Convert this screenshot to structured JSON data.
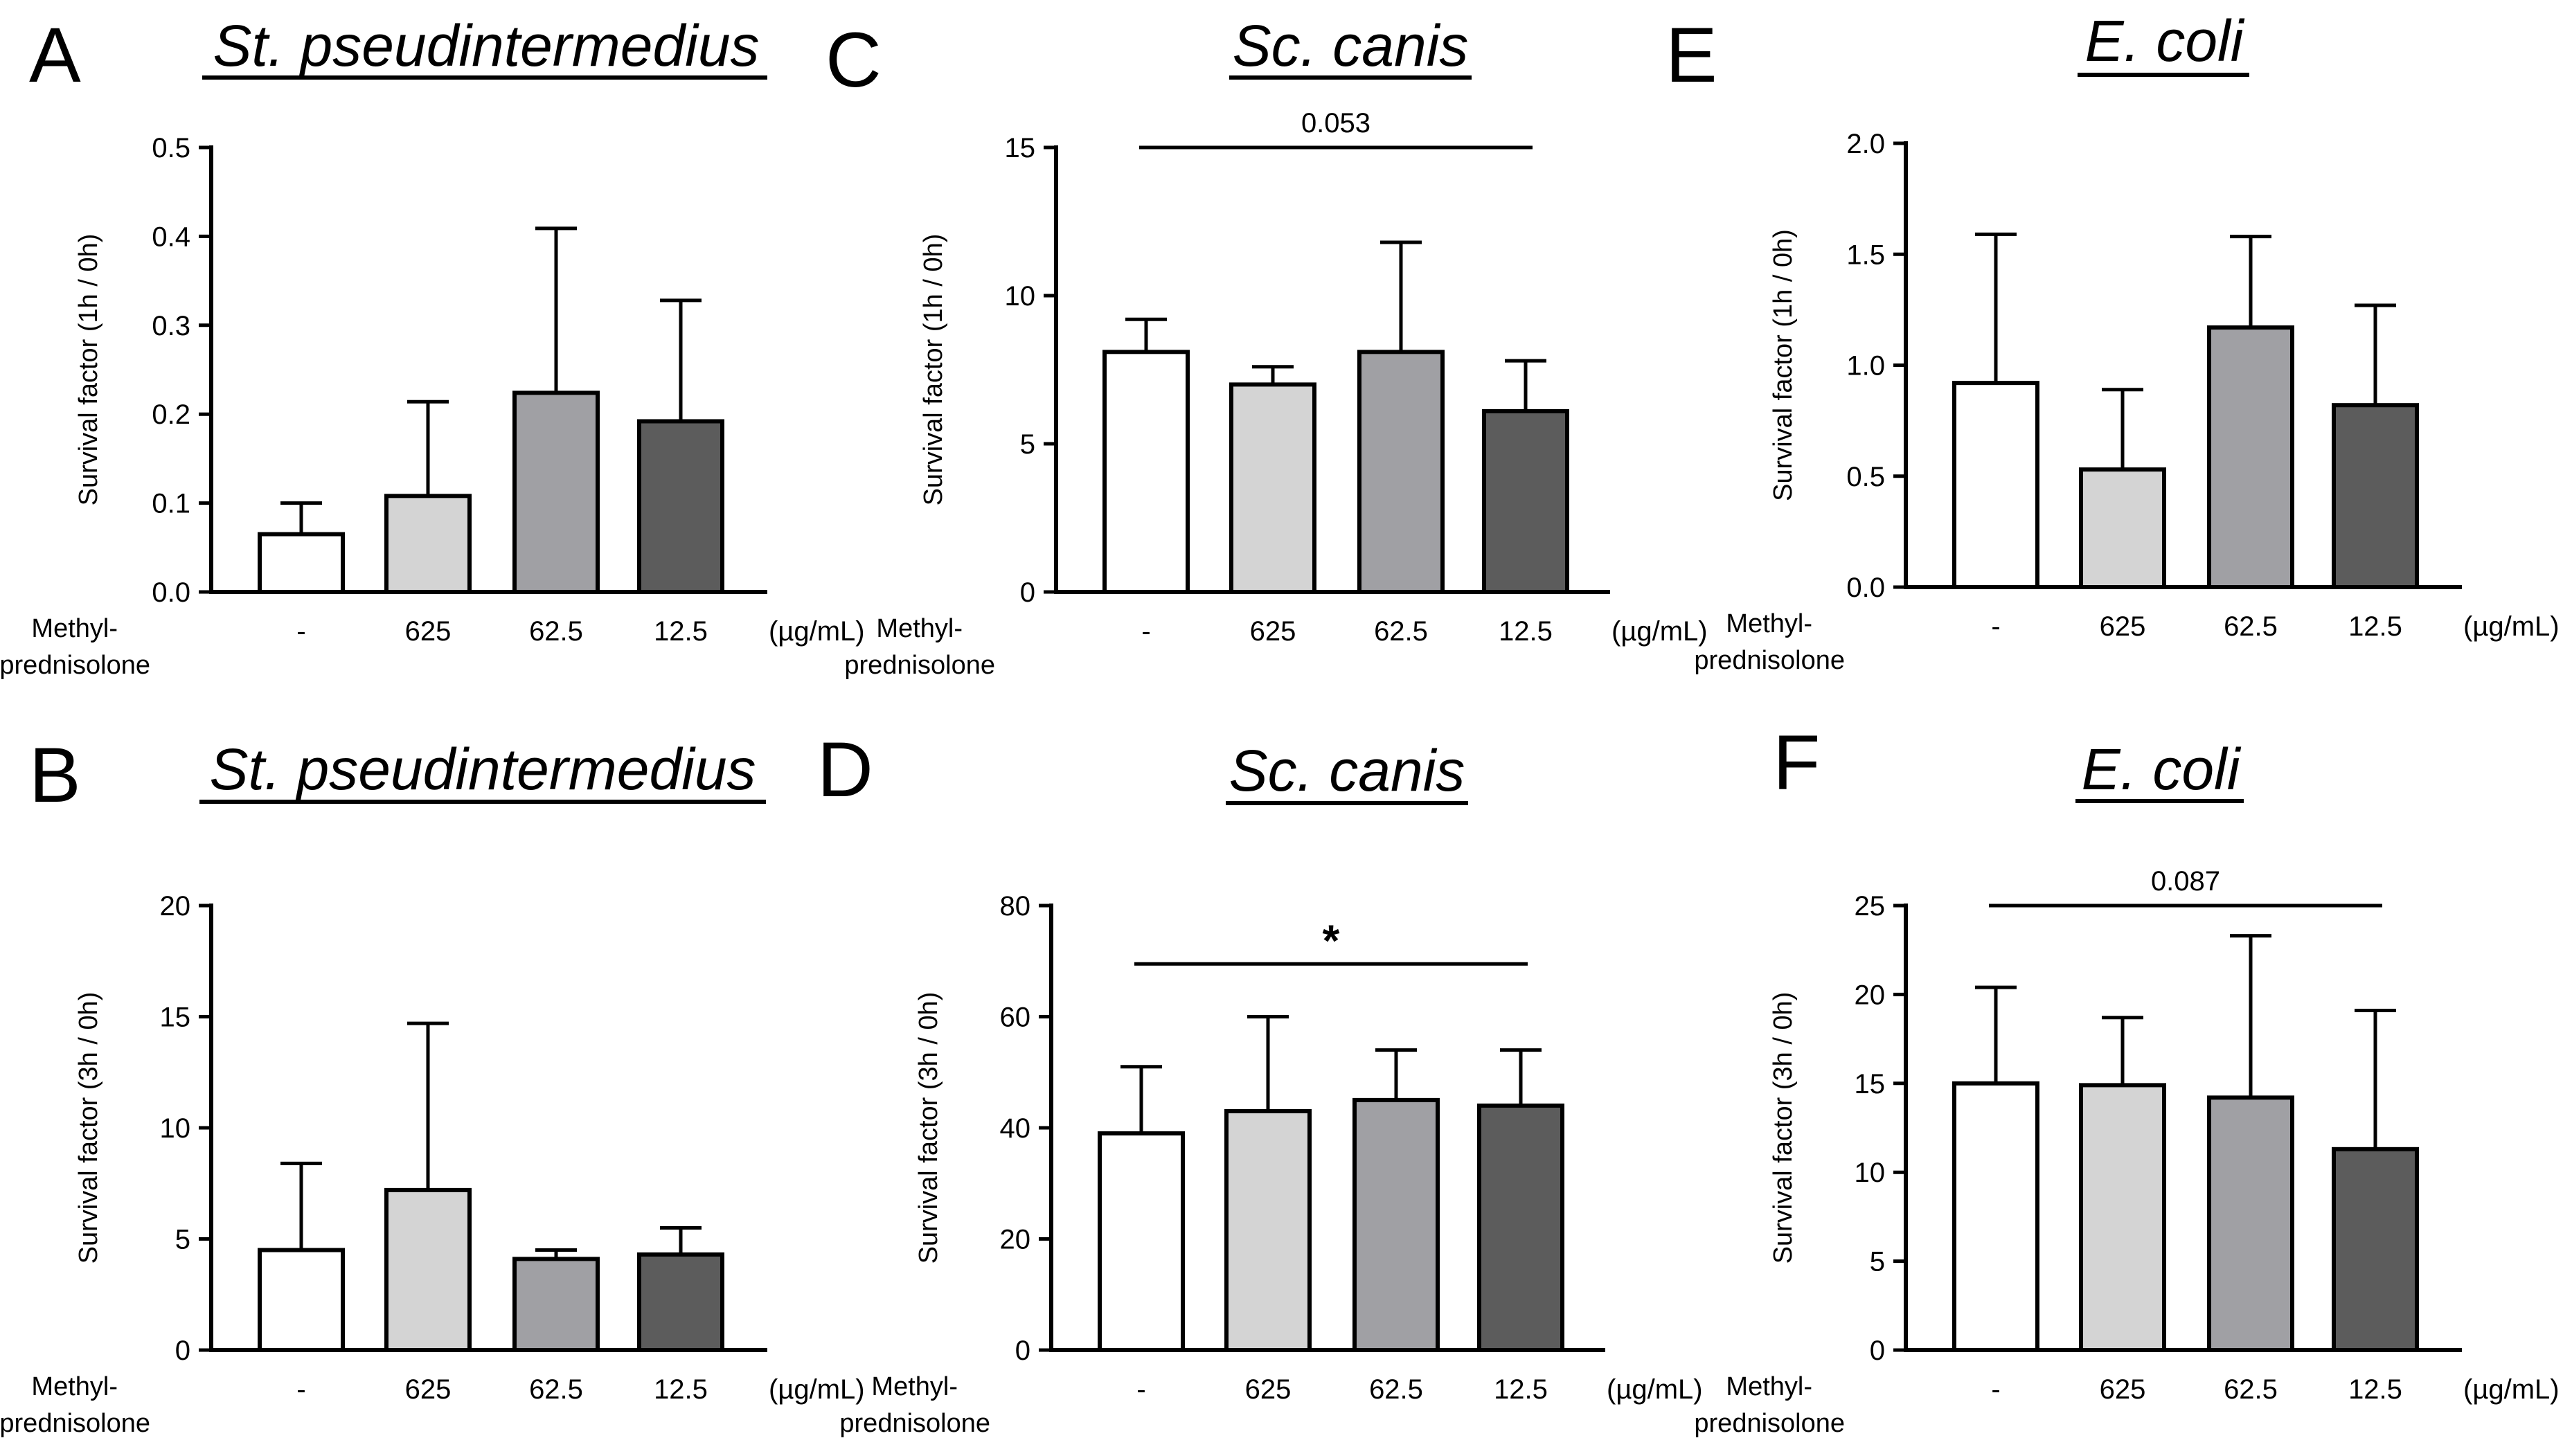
{
  "chart_data": [
    {
      "panel": "A",
      "title": "St. pseudintermedius",
      "type": "bar",
      "ylabel": "Survival factor (1h / 0h)",
      "ylim": [
        0,
        0.5
      ],
      "yticks": [
        "0.0",
        "0.1",
        "0.2",
        "0.3",
        "0.4",
        "0.5"
      ],
      "row_label": [
        "Methyl-",
        "prednisolone"
      ],
      "unit": "(µg/mL)",
      "categories": [
        "-",
        "625",
        "62.5",
        "12.5"
      ],
      "values": [
        0.065,
        0.108,
        0.224,
        0.192
      ],
      "errors": [
        0.035,
        0.106,
        0.185,
        0.136
      ],
      "colors": [
        "#ffffff",
        "#d4d4d4",
        "#a0a0a4",
        "#5c5c5c"
      ],
      "bracket": null
    },
    {
      "panel": "C",
      "title": "Sc. canis",
      "type": "bar",
      "ylabel": "Survival factor (1h / 0h)",
      "ylim": [
        0,
        15
      ],
      "yticks": [
        "0",
        "5",
        "10",
        "15"
      ],
      "row_label": [
        "Methyl-",
        "prednisolone"
      ],
      "unit": "(µg/mL)",
      "categories": [
        "-",
        "625",
        "62.5",
        "12.5"
      ],
      "values": [
        8.1,
        7.0,
        8.1,
        6.1
      ],
      "errors": [
        1.1,
        0.6,
        3.7,
        1.7
      ],
      "colors": [
        "#ffffff",
        "#d4d4d4",
        "#a0a0a4",
        "#5c5c5c"
      ],
      "bracket": {
        "from": 0,
        "to": 3,
        "y": 15.0,
        "label": "0.053"
      }
    },
    {
      "panel": "E",
      "title": "E. coli",
      "type": "bar",
      "ylabel": "Survival factor (1h / 0h)",
      "ylim": [
        0,
        2.0
      ],
      "yticks": [
        "0.0",
        "0.5",
        "1.0",
        "1.5",
        "2.0"
      ],
      "row_label": [
        "Methyl-",
        "prednisolone"
      ],
      "unit": "(µg/mL)",
      "categories": [
        "-",
        "625",
        "62.5",
        "12.5"
      ],
      "values": [
        0.92,
        0.53,
        1.17,
        0.82
      ],
      "errors": [
        0.67,
        0.36,
        0.41,
        0.45
      ],
      "colors": [
        "#ffffff",
        "#d4d4d4",
        "#a0a0a4",
        "#5c5c5c"
      ],
      "bracket": null
    },
    {
      "panel": "B",
      "title": "St. pseudintermedius",
      "type": "bar",
      "ylabel": "Survival factor (3h / 0h)",
      "ylim": [
        0,
        20
      ],
      "yticks": [
        "0",
        "5",
        "10",
        "15",
        "20"
      ],
      "row_label": [
        "Methyl-",
        "prednisolone"
      ],
      "unit": "(µg/mL)",
      "categories": [
        "-",
        "625",
        "62.5",
        "12.5"
      ],
      "values": [
        4.5,
        7.2,
        4.1,
        4.3
      ],
      "errors": [
        3.9,
        7.5,
        0.4,
        1.2
      ],
      "colors": [
        "#ffffff",
        "#d4d4d4",
        "#a0a0a4",
        "#5c5c5c"
      ],
      "bracket": null
    },
    {
      "panel": "D",
      "title": "Sc. canis",
      "type": "bar",
      "ylabel": "Survival factor (3h / 0h)",
      "ylim": [
        0,
        80
      ],
      "yticks": [
        "0",
        "20",
        "40",
        "60",
        "80"
      ],
      "row_label": [
        "Methyl-",
        "prednisolone"
      ],
      "unit": "(µg/mL)",
      "categories": [
        "-",
        "625",
        "62.5",
        "12.5"
      ],
      "values": [
        39,
        43,
        45,
        44
      ],
      "errors": [
        12,
        17,
        9,
        10
      ],
      "colors": [
        "#ffffff",
        "#d4d4d4",
        "#a0a0a4",
        "#5c5c5c"
      ],
      "bracket": {
        "from": 0,
        "to": 3,
        "y": 69.5,
        "label": "*"
      }
    },
    {
      "panel": "F",
      "title": "E. coli",
      "type": "bar",
      "ylabel": "Survival factor (3h / 0h)",
      "ylim": [
        0,
        25
      ],
      "yticks": [
        "0",
        "5",
        "10",
        "15",
        "20",
        "25"
      ],
      "row_label": [
        "Methyl-",
        "prednisolone"
      ],
      "unit": "(µg/mL)",
      "categories": [
        "-",
        "625",
        "62.5",
        "12.5"
      ],
      "values": [
        15.0,
        14.9,
        14.2,
        11.3
      ],
      "errors": [
        5.4,
        3.8,
        9.1,
        7.8
      ],
      "colors": [
        "#ffffff",
        "#d4d4d4",
        "#a0a0a4",
        "#5c5c5c"
      ],
      "bracket": {
        "from": 0,
        "to": 3,
        "y": 25.0,
        "label": "0.087"
      }
    }
  ]
}
